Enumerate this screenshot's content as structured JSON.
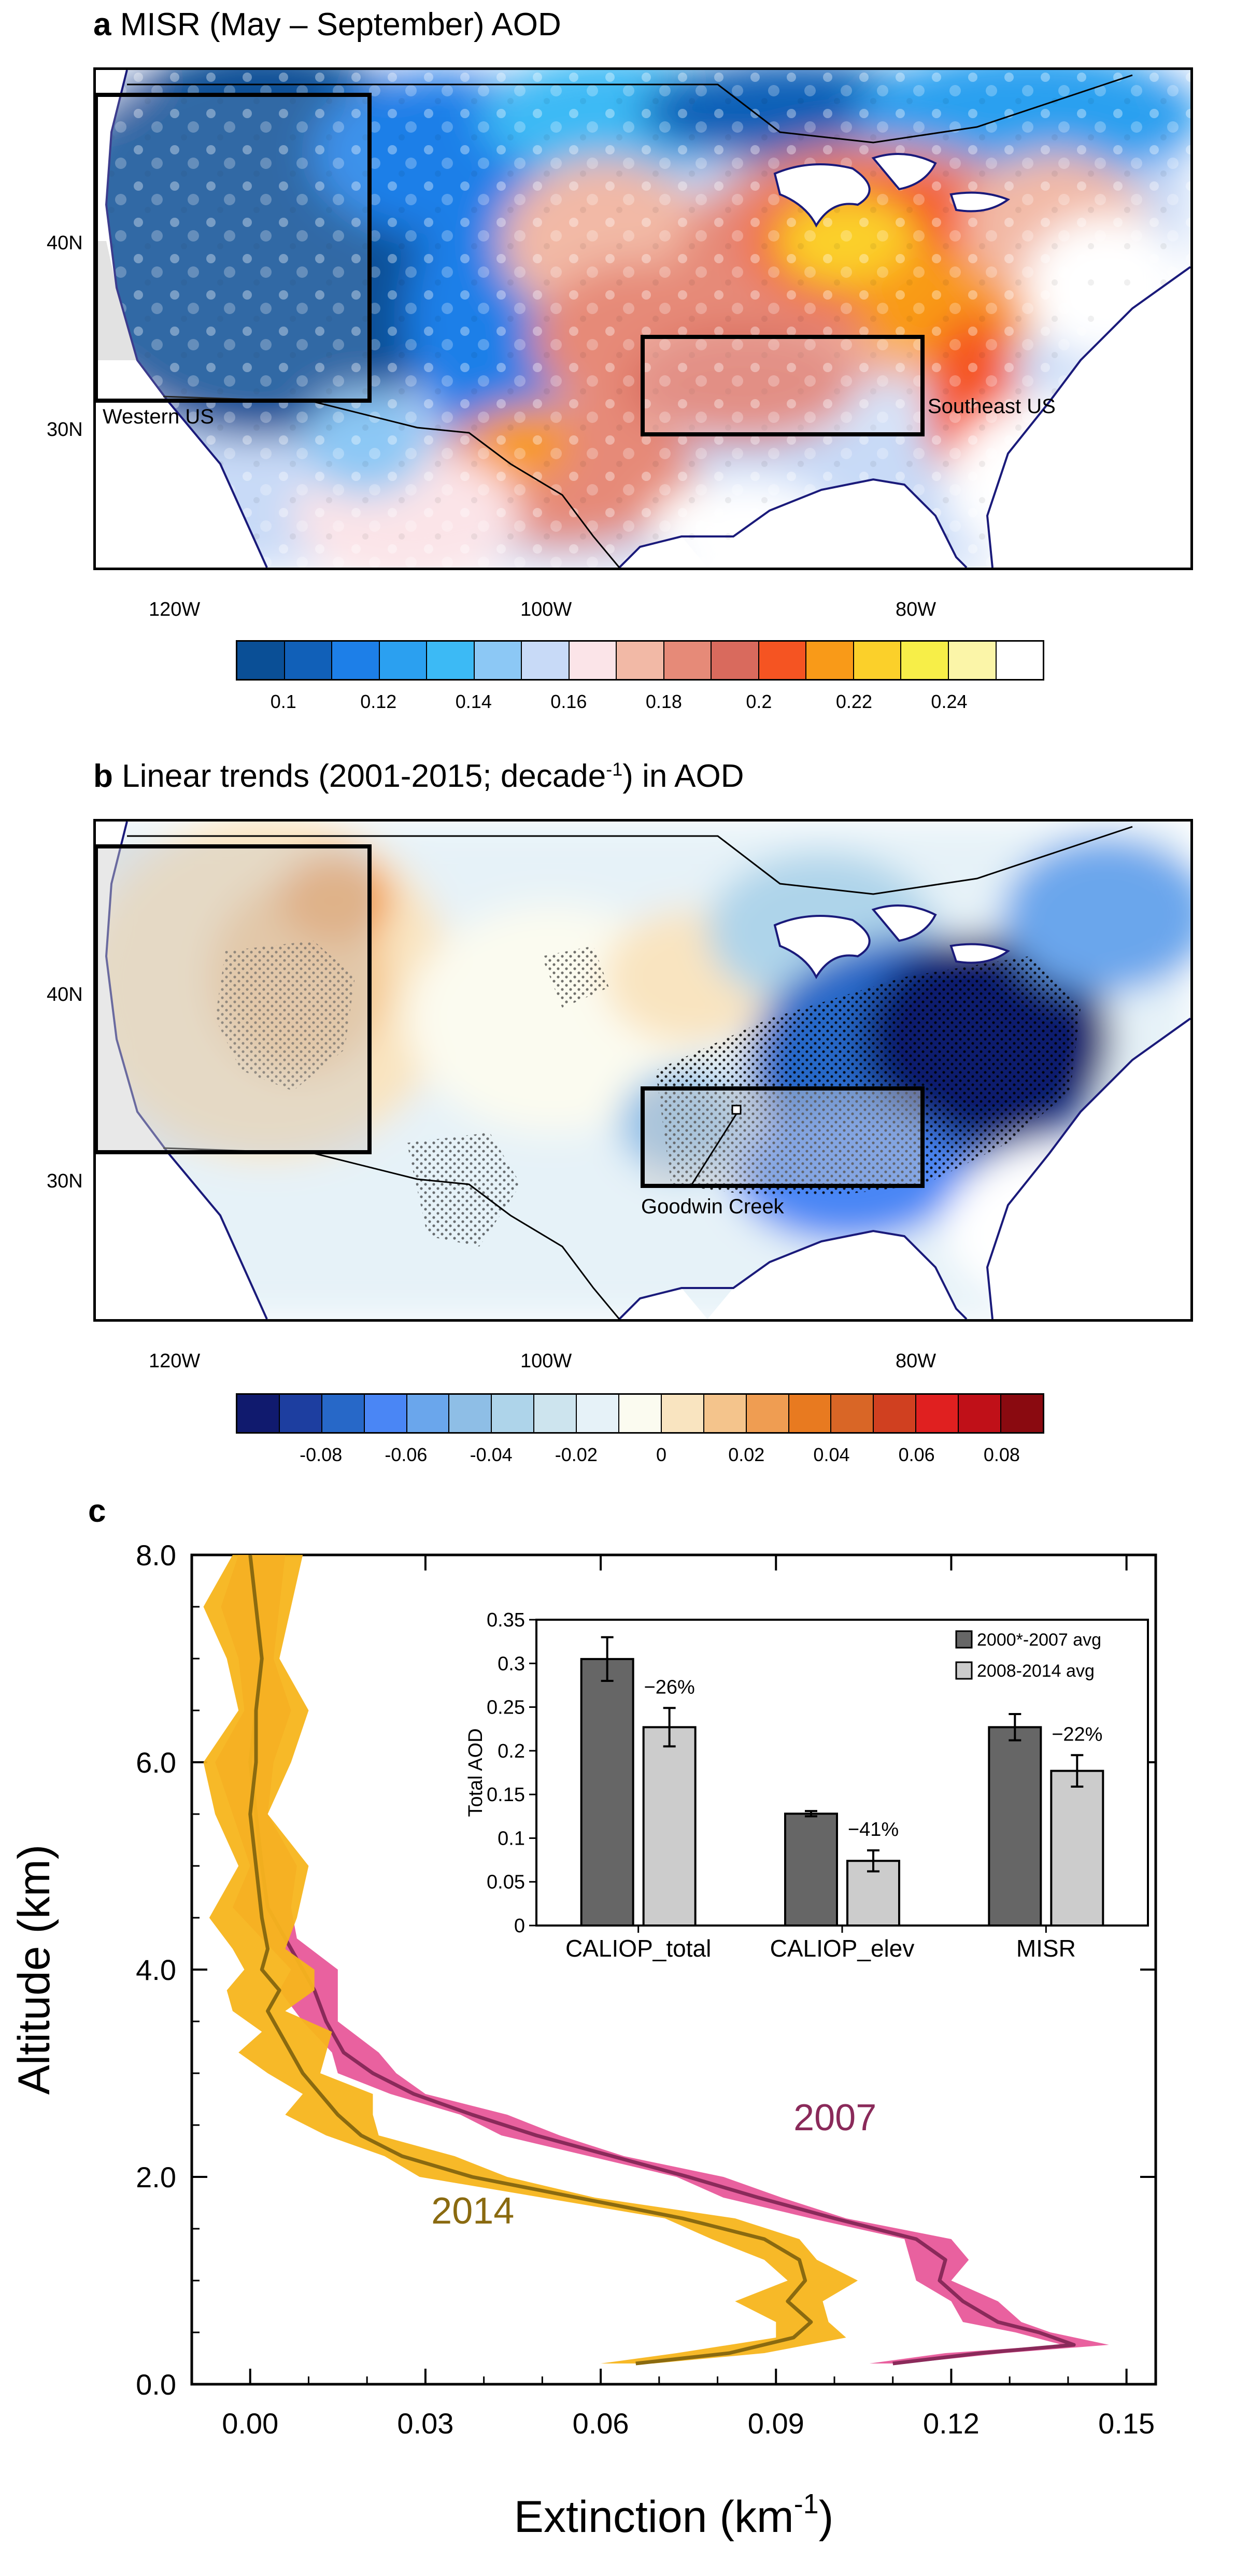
{
  "panel_a": {
    "letter": "a",
    "title": "MISR (May – September)  AOD",
    "regions": [
      "Western US",
      "Southeast US"
    ],
    "lat_labels": [
      "40N",
      "30N"
    ],
    "lon_labels": [
      "120W",
      "100W",
      "80W"
    ],
    "colorbar_colors": [
      "#0a4f96",
      "#1160b8",
      "#1d7fe8",
      "#2ba0f0",
      "#3cbaf5",
      "#8cc8f5",
      "#c8daf7",
      "#fbe4e8",
      "#f2b9a6",
      "#e68a78",
      "#d96a5d",
      "#f55422",
      "#f99a18",
      "#fbd02a",
      "#f7ee48",
      "#fbf5a8",
      "#ffffff"
    ],
    "colorbar_labels": [
      "0.1",
      "0.12",
      "0.14",
      "0.16",
      "0.18",
      "0.2",
      "0.22",
      "0.24"
    ]
  },
  "panel_b": {
    "letter": "b",
    "title_pre": "Linear trends (2001-2015; decade",
    "title_sup": "-1",
    "title_post": ") in AOD",
    "site_label": "Goodwin Creek",
    "lat_labels": [
      "40N",
      "30N"
    ],
    "lon_labels": [
      "120W",
      "100W",
      "80W"
    ],
    "colorbar_colors": [
      "#101a6e",
      "#1d3ea0",
      "#2768c8",
      "#4a86f5",
      "#6aa6ec",
      "#8ebee6",
      "#aed4ea",
      "#cde4ee",
      "#e6f2f8",
      "#fbfbf0",
      "#f9e4c0",
      "#f4c48c",
      "#ef9d52",
      "#e87a20",
      "#d96626",
      "#d04020",
      "#e02020",
      "#c01018",
      "#8a0a10"
    ],
    "colorbar_labels": [
      "-0.08",
      "-0.06",
      "-0.04",
      "-0.02",
      "0",
      "0.02",
      "0.04",
      "0.06",
      "0.08"
    ]
  },
  "panel_c": {
    "letter": "c",
    "colors": {
      "y2007": "#8a2a5a",
      "y2007_band": "#e8589a",
      "y2014": "#8a6a10",
      "y2014_band": "#f7b51c"
    },
    "inset_colors": {
      "dark": "#666666",
      "light": "#cccccc"
    }
  },
  "chart_data": [
    {
      "type": "line",
      "xlabel": "Extinction (km",
      "xlabel_sup": "-1",
      "xlabel_post": ")",
      "ylabel": "Altitude (km)",
      "xlim": [
        -0.01,
        0.155
      ],
      "ylim": [
        0,
        8
      ],
      "x_ticks": [
        "0.00",
        "0.03",
        "0.06",
        "0.09",
        "0.12",
        "0.15"
      ],
      "y_ticks": [
        "0.0",
        "2.0",
        "4.0",
        "6.0",
        "8.0"
      ],
      "series": [
        {
          "name": "2007",
          "altitude": [
            0.2,
            0.3,
            0.38,
            0.5,
            0.6,
            0.8,
            1.0,
            1.2,
            1.4,
            1.6,
            1.8,
            2.0,
            2.2,
            2.4,
            2.6,
            2.8,
            3.0,
            3.2,
            3.5,
            3.8,
            4.0,
            4.3,
            4.6,
            5.0,
            5.5,
            6.0,
            6.5,
            7.0,
            7.5,
            8.0
          ],
          "extinction": [
            0.11,
            0.125,
            0.141,
            0.135,
            0.128,
            0.122,
            0.118,
            0.119,
            0.114,
            0.1,
            0.087,
            0.075,
            0.062,
            0.049,
            0.038,
            0.028,
            0.021,
            0.016,
            0.013,
            0.011,
            0.009,
            0.006,
            0.003,
            0.002,
            0.001,
            0.0,
            0.001,
            0.002,
            0.001,
            0.0
          ],
          "band": 0.002
        },
        {
          "name": "2014",
          "altitude": [
            0.2,
            0.3,
            0.45,
            0.6,
            0.8,
            1.0,
            1.2,
            1.4,
            1.6,
            1.8,
            2.0,
            2.2,
            2.4,
            2.6,
            2.8,
            3.0,
            3.2,
            3.4,
            3.6,
            3.8,
            4.0,
            4.2,
            4.5,
            5.0,
            5.5,
            6.0,
            6.5,
            7.0,
            7.5,
            8.0
          ],
          "extinction": [
            0.066,
            0.082,
            0.093,
            0.096,
            0.092,
            0.095,
            0.094,
            0.088,
            0.074,
            0.056,
            0.038,
            0.026,
            0.019,
            0.015,
            0.012,
            0.009,
            0.007,
            0.005,
            0.003,
            0.005,
            0.002,
            0.003,
            0.002,
            0.001,
            0.0,
            0.001,
            0.001,
            0.002,
            0.001,
            0.0
          ],
          "band": 0.003
        }
      ],
      "annotations": [
        "2007",
        "2014"
      ]
    },
    {
      "type": "bar",
      "title": "",
      "ylabel": "Total AOD",
      "ylim": [
        0,
        0.35
      ],
      "y_ticks": [
        "0",
        "0.05",
        "0.1",
        "0.15",
        "0.2",
        "0.25",
        "0.3",
        "0.35"
      ],
      "categories": [
        "CALIOP_total",
        "CALIOP_elev",
        "MISR"
      ],
      "series": [
        {
          "name": "2000*-2007 avg",
          "values": [
            0.305,
            0.128,
            0.227
          ],
          "errors": [
            0.025,
            0.003,
            0.015
          ]
        },
        {
          "name": "2008-2014 avg",
          "values": [
            0.227,
            0.074,
            0.177
          ],
          "errors": [
            0.022,
            0.012,
            0.018
          ]
        }
      ],
      "change_labels": [
        "−26%",
        "−41%",
        "−22%"
      ],
      "legend_position": "top-right"
    }
  ]
}
